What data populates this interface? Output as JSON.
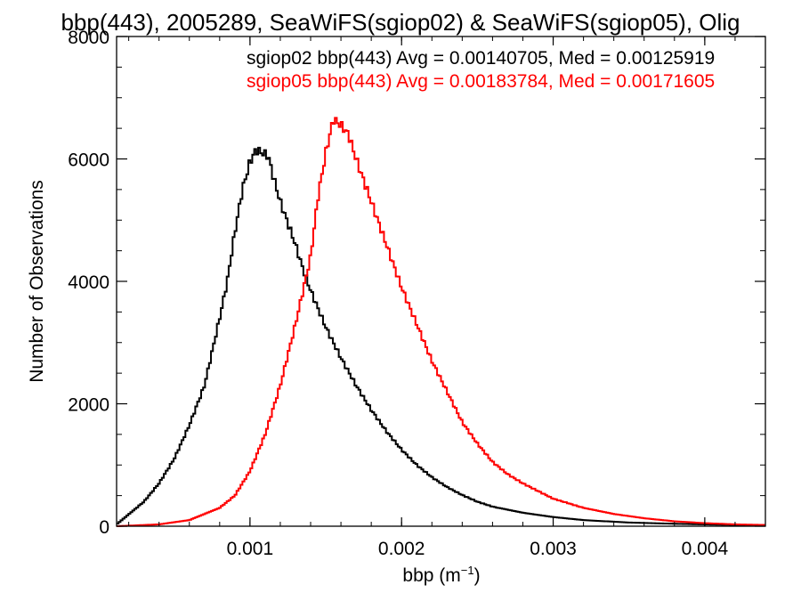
{
  "chart_data": {
    "type": "histogram",
    "title": "bbp(443), 2005289, SeaWiFS(sgiop02) & SeaWiFS(sgiop05), Olig",
    "xlabel": "bbp (m",
    "xlabel_sup": "−1",
    "xlabel_end": ")",
    "ylabel": "Number of Observations",
    "xlim": [
      0.00012,
      0.0044
    ],
    "ylim": [
      0,
      8000
    ],
    "xticks": [
      0.001,
      0.002,
      0.003,
      0.004
    ],
    "xtick_labels": [
      "0.001",
      "0.002",
      "0.003",
      "0.004"
    ],
    "yticks": [
      0,
      2000,
      4000,
      6000,
      8000
    ],
    "ytick_labels": [
      "0",
      "2000",
      "4000",
      "6000",
      "8000"
    ],
    "grid": false,
    "legend_placement": "top-right",
    "series": [
      {
        "name": "sgiop02 bbp(443) Avg = 0.00140705, Med = 0.00125919",
        "color": "#000000",
        "x": [
          0.00012,
          0.0003,
          0.0004,
          0.0005,
          0.0006,
          0.0007,
          0.0008,
          0.00085,
          0.0009,
          0.00095,
          0.001,
          0.00104,
          0.00108,
          0.00112,
          0.00116,
          0.0012,
          0.00125,
          0.0013,
          0.00135,
          0.0014,
          0.0015,
          0.0016,
          0.0017,
          0.0018,
          0.0019,
          0.002,
          0.0021,
          0.0022,
          0.0023,
          0.0024,
          0.0025,
          0.0026,
          0.0028,
          0.003,
          0.0032,
          0.0035,
          0.0038,
          0.0041,
          0.0044
        ],
        "y": [
          30,
          400,
          700,
          1100,
          1650,
          2300,
          3400,
          4000,
          4800,
          5500,
          5950,
          6150,
          6100,
          6050,
          5650,
          5300,
          4950,
          4600,
          4200,
          3850,
          3250,
          2750,
          2300,
          1900,
          1550,
          1250,
          1000,
          800,
          640,
          510,
          400,
          320,
          220,
          150,
          100,
          60,
          40,
          25,
          15
        ]
      },
      {
        "name": "sgiop05 bbp(443) Avg = 0.00183784, Med = 0.00171605",
        "color": "#ff0000",
        "x": [
          0.00012,
          0.0004,
          0.0006,
          0.0008,
          0.0009,
          0.001,
          0.0011,
          0.0012,
          0.0013,
          0.0014,
          0.00145,
          0.0015,
          0.00155,
          0.0016,
          0.00165,
          0.0017,
          0.0018,
          0.0019,
          0.002,
          0.0021,
          0.0022,
          0.0023,
          0.0024,
          0.0025,
          0.0026,
          0.0027,
          0.0028,
          0.003,
          0.0032,
          0.0034,
          0.0036,
          0.0038,
          0.004,
          0.0042,
          0.0044
        ],
        "y": [
          0,
          30,
          100,
          300,
          500,
          900,
          1500,
          2300,
          3300,
          4400,
          5400,
          6100,
          6650,
          6550,
          6400,
          6000,
          5300,
          4600,
          3900,
          3300,
          2700,
          2200,
          1700,
          1350,
          1050,
          850,
          700,
          450,
          300,
          200,
          130,
          80,
          50,
          30,
          20
        ]
      }
    ]
  }
}
